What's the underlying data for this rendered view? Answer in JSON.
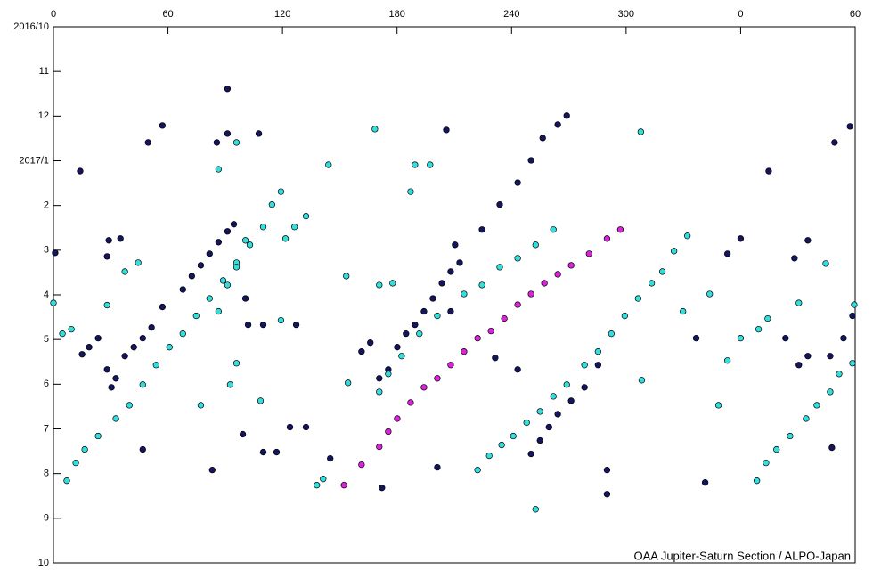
{
  "chart_data": {
    "type": "scatter",
    "caption": "OAA Jupiter-Saturn Section / ALPO-Japan",
    "xlim": [
      0,
      420
    ],
    "xticks": [
      0,
      60,
      120,
      180,
      240,
      300,
      {
        "value": 360,
        "label": "0"
      },
      {
        "value": 420,
        "label": "60"
      }
    ],
    "ylim": [
      0,
      12
    ],
    "y_inverted": true,
    "yticks": [
      {
        "value": 0,
        "label": "2016/10"
      },
      {
        "value": 1,
        "label": "11"
      },
      {
        "value": 2,
        "label": "12"
      },
      {
        "value": 3,
        "label": "2017/1"
      },
      {
        "value": 4,
        "label": "2"
      },
      {
        "value": 5,
        "label": "3"
      },
      {
        "value": 6,
        "label": "4"
      },
      {
        "value": 7,
        "label": "5"
      },
      {
        "value": 8,
        "label": "6"
      },
      {
        "value": 9,
        "label": "7"
      },
      {
        "value": 10,
        "label": "8"
      },
      {
        "value": 11,
        "label": "9"
      },
      {
        "value": 12,
        "label": "10"
      }
    ],
    "series": [
      {
        "color": "#14145f",
        "x": [
          0.9,
          14.0,
          91.2,
          57.1,
          49.6,
          85.6,
          91.2,
          107.6,
          29.0,
          35.1,
          28.1,
          28.1,
          30.4,
          32.7,
          15.0,
          23.4,
          37.4,
          42.1,
          46.8,
          51.4,
          57.1,
          67.8,
          72.5,
          77.2,
          81.8,
          86.5,
          91.2,
          94.5,
          46.8,
          83.2,
          99.2,
          109.9,
          116.9,
          123.9,
          132.3,
          102.0,
          109.9,
          127.2,
          100.6,
          161.4,
          166.0,
          170.7,
          175.4,
          180.1,
          184.7,
          189.4,
          194.1,
          198.8,
          203.5,
          208.1,
          212.8,
          224.5,
          233.8,
          243.2,
          250.2,
          256.3,
          264.2,
          268.9,
          205.8,
          210.4,
          208.1,
          201.1,
          172.1,
          145.0,
          231.4,
          243.2,
          250.2,
          254.9,
          259.6,
          264.2,
          271.2,
          278.2,
          285.3,
          290.0,
          290.0,
          341.4,
          336.7,
          353.1,
          360.0,
          374.7,
          417.3,
          409.2,
          383.5,
          390.5,
          395.2,
          406.9,
          413.9,
          418.6,
          407.8,
          388.2,
          395.2,
          18.7
        ],
        "values": [
          5.06,
          3.23,
          1.39,
          2.21,
          2.59,
          2.59,
          2.39,
          2.39,
          4.78,
          4.74,
          5.14,
          7.67,
          8.07,
          7.87,
          7.33,
          6.97,
          7.37,
          7.17,
          6.97,
          6.73,
          6.27,
          5.88,
          5.58,
          5.34,
          5.08,
          4.82,
          4.58,
          4.42,
          9.46,
          9.92,
          9.12,
          9.52,
          9.52,
          8.96,
          8.96,
          6.67,
          6.67,
          6.67,
          6.08,
          7.27,
          7.07,
          7.87,
          7.67,
          7.17,
          6.87,
          6.67,
          6.37,
          6.08,
          5.74,
          5.48,
          5.28,
          4.54,
          3.98,
          3.49,
          2.99,
          2.49,
          2.19,
          1.99,
          2.31,
          4.88,
          6.37,
          9.86,
          10.32,
          9.66,
          7.41,
          7.67,
          9.56,
          9.26,
          8.96,
          8.67,
          8.37,
          8.07,
          7.57,
          9.92,
          10.46,
          10.2,
          6.97,
          5.08,
          4.74,
          3.23,
          2.23,
          2.59,
          6.97,
          7.57,
          7.37,
          7.37,
          6.97,
          6.47,
          9.42,
          5.18,
          4.78,
          7.17
        ]
      },
      {
        "color": "#33dede",
        "x": [
          7.0,
          11.7,
          16.4,
          23.4,
          32.7,
          39.8,
          46.8,
          53.8,
          60.8,
          67.8,
          74.8,
          81.8,
          88.9,
          95.9,
          102.9,
          109.9,
          114.5,
          119.2,
          86.5,
          91.2,
          95.9,
          100.6,
          121.6,
          126.3,
          132.3,
          0.0,
          4.7,
          9.4,
          28.1,
          37.4,
          44.4,
          86.5,
          95.9,
          77.2,
          92.6,
          95.9,
          108.5,
          119.2,
          138.0,
          141.3,
          144.1,
          153.4,
          154.3,
          168.4,
          170.7,
          177.7,
          187.1,
          189.4,
          197.3,
          170.7,
          175.4,
          182.4,
          191.7,
          201.1,
          215.1,
          224.5,
          233.8,
          243.2,
          252.6,
          261.9,
          307.7,
          222.2,
          228.3,
          234.8,
          240.9,
          247.9,
          254.9,
          261.9,
          268.9,
          278.2,
          285.3,
          292.3,
          299.3,
          306.3,
          313.4,
          319.0,
          325.1,
          332.1,
          252.6,
          308.2,
          329.8,
          348.4,
          343.8,
          368.5,
          373.3,
          378.8,
          385.9,
          394.3,
          399.9,
          406.9,
          411.6,
          418.6,
          353.1,
          360.0,
          369.4,
          374.2,
          390.5,
          404.6,
          419.5
        ],
        "values": [
          10.16,
          9.76,
          9.46,
          9.16,
          8.77,
          8.47,
          8.01,
          7.57,
          7.17,
          6.87,
          6.47,
          6.08,
          5.68,
          5.28,
          4.88,
          4.48,
          3.98,
          3.69,
          6.37,
          5.78,
          5.38,
          4.78,
          4.74,
          4.48,
          4.24,
          6.18,
          6.87,
          6.77,
          6.23,
          5.48,
          5.28,
          3.19,
          2.59,
          8.47,
          8.01,
          7.53,
          8.37,
          6.57,
          10.26,
          10.12,
          3.09,
          5.58,
          7.97,
          2.29,
          5.78,
          5.74,
          3.69,
          3.09,
          3.09,
          8.17,
          7.77,
          7.37,
          6.87,
          6.47,
          5.98,
          5.78,
          5.38,
          5.18,
          4.88,
          4.54,
          2.35,
          9.92,
          9.6,
          9.36,
          9.16,
          8.86,
          8.61,
          8.27,
          8.01,
          7.57,
          7.27,
          6.87,
          6.47,
          6.08,
          5.74,
          5.48,
          5.02,
          4.68,
          10.8,
          7.91,
          6.37,
          8.47,
          5.98,
          10.16,
          9.76,
          9.46,
          9.16,
          8.77,
          8.47,
          8.17,
          7.77,
          7.53,
          7.47,
          6.97,
          6.77,
          6.53,
          6.18,
          5.3,
          6.22
        ]
      },
      {
        "color": "#dd22dd",
        "x": [
          152.2,
          161.4,
          170.7,
          175.4,
          180.1,
          187.1,
          194.1,
          201.1,
          208.1,
          215.1,
          222.2,
          229.2,
          236.2,
          243.2,
          250.2,
          257.2,
          264.2,
          271.2,
          280.6,
          290.0,
          297.0
        ],
        "values": [
          10.26,
          9.8,
          9.4,
          9.06,
          8.77,
          8.41,
          8.07,
          7.87,
          7.57,
          7.27,
          6.97,
          6.81,
          6.53,
          6.22,
          5.98,
          5.74,
          5.54,
          5.34,
          5.08,
          4.74,
          4.54
        ]
      }
    ]
  }
}
